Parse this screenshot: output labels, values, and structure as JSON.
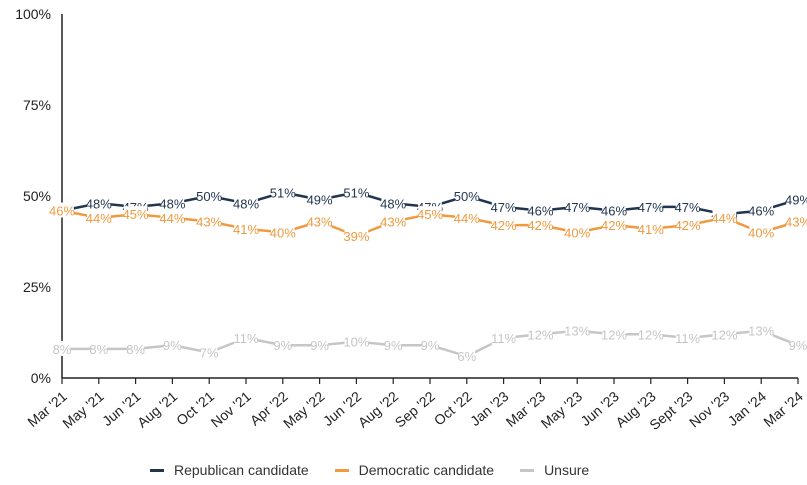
{
  "chart_data": {
    "type": "line",
    "categories": [
      "Mar '21",
      "May '21",
      "Jun '21",
      "Aug '21",
      "Oct '21",
      "Nov '21",
      "Apr '22",
      "May '22",
      "Jun '22",
      "Aug '22",
      "Sep '22",
      "Oct '22",
      "Jan '23",
      "Mar '23",
      "May '23",
      "Jun '23",
      "Aug '23",
      "Sept '23",
      "Nov '23",
      "Jan '24",
      "Mar '24"
    ],
    "ylim": [
      0,
      100
    ],
    "yticks": [
      "0%",
      "25%",
      "50%",
      "75%",
      "100%"
    ],
    "grid": false,
    "legend_position": "bottom",
    "series": [
      {
        "name": "Republican candidate",
        "color": "#1f3550",
        "values": [
          46,
          48,
          47,
          48,
          50,
          48,
          51,
          49,
          51,
          48,
          47,
          50,
          47,
          46,
          47,
          46,
          47,
          47,
          45,
          46,
          49
        ],
        "labels": [
          "",
          "48%",
          "47%",
          "48%",
          "50%",
          "48%",
          "51%",
          "49%",
          "51%",
          "48%",
          "47%",
          "50%",
          "47%",
          "46%",
          "47%",
          "46%",
          "47%",
          "47%",
          "45%",
          "46%",
          "49%"
        ]
      },
      {
        "name": "Democratic candidate",
        "color": "#ef9a3e",
        "values": [
          46,
          44,
          45,
          44,
          43,
          41,
          40,
          43,
          39,
          43,
          45,
          44,
          42,
          42,
          40,
          42,
          41,
          42,
          44,
          40,
          43
        ],
        "labels": [
          "46%",
          "44%",
          "45%",
          "44%",
          "43%",
          "41%",
          "40%",
          "43%",
          "39%",
          "43%",
          "45%",
          "44%",
          "42%",
          "42%",
          "40%",
          "42%",
          "41%",
          "42%",
          "44%",
          "40%",
          "43%"
        ]
      },
      {
        "name": "Unsure",
        "color": "#c6c6c6",
        "values": [
          8,
          8,
          8,
          9,
          7,
          11,
          9,
          9,
          10,
          9,
          9,
          6,
          11,
          12,
          13,
          12,
          12,
          11,
          12,
          13,
          9
        ],
        "labels": [
          "8%",
          "8%",
          "8%",
          "9%",
          "7%",
          "11%",
          "9%",
          "9%",
          "10%",
          "9%",
          "9%",
          "6%",
          "11%",
          "12%",
          "13%",
          "12%",
          "12%",
          "11%",
          "12%",
          "13%",
          "9%"
        ]
      }
    ]
  }
}
